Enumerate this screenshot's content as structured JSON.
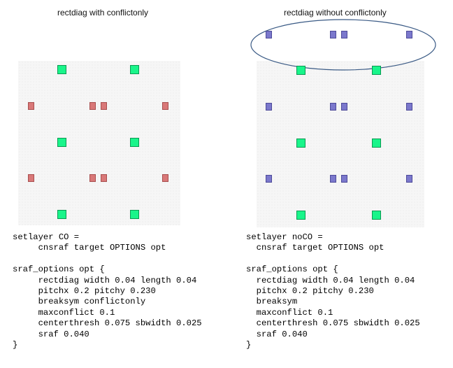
{
  "panels": {
    "left": {
      "title": "rectdiag with conflictonly",
      "code": "setlayer CO =\n     cnsraf target OPTIONS opt\n\nsraf_options opt {\n     rectdiag width 0.04 length 0.04\n     pitchx 0.2 pitchy 0.230\n     breaksym conflictonly\n     maxconflict 0.1\n     centerthresh 0.075 sbwidth 0.025\n     sraf 0.040\n}"
    },
    "right": {
      "title": "rectdiag without conflictonly",
      "code": "setlayer noCO =\n  cnsraf target OPTIONS opt\n\nsraf_options opt {\n  rectdiag width 0.04 length 0.04\n  pitchx 0.2 pitchy 0.230\n  breaksym\n  maxconflict 0.1\n  centerthresh 0.075 sbwidth 0.025\n  sraf 0.040\n}"
    }
  },
  "colors": {
    "target": "#19f58a",
    "sraf_conflictonly": "#d97878",
    "sraf_no_conflictonly": "#7b78cc",
    "ellipse": "#3a5a85"
  }
}
